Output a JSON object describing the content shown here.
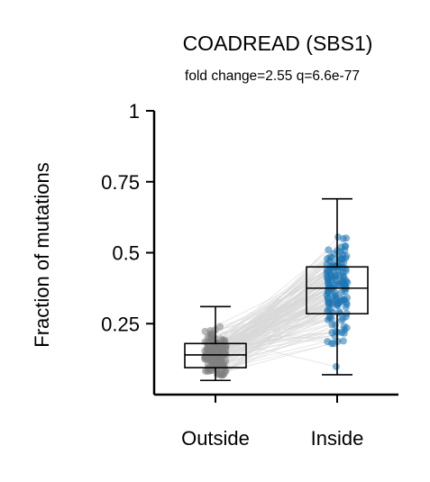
{
  "chart_data": {
    "type": "box-strip-paired",
    "title": "COADREAD (SBS1)",
    "subtitle": "fold change=2.55 q=6.6e-77",
    "ylabel": "Fraction of mutations",
    "xlabel": "",
    "categories": [
      "Outside",
      "Inside"
    ],
    "ylim": [
      0,
      1
    ],
    "yticks": [
      0.25,
      0.5,
      0.75,
      1
    ],
    "ytick_labels": [
      "0.25",
      "0.5",
      "0.75",
      "1"
    ],
    "colors": {
      "Outside": "#808080",
      "Inside": "#1f77b4",
      "pair_lines": "#d9d9d9"
    },
    "boxes": [
      {
        "name": "Outside",
        "whisker_low": 0.05,
        "q1": 0.095,
        "median": 0.14,
        "q3": 0.18,
        "whisker_high": 0.31
      },
      {
        "name": "Inside",
        "whisker_low": 0.07,
        "q1": 0.285,
        "median": 0.375,
        "q3": 0.45,
        "whisker_high": 0.69
      }
    ],
    "n_points": 150,
    "grid": false
  }
}
